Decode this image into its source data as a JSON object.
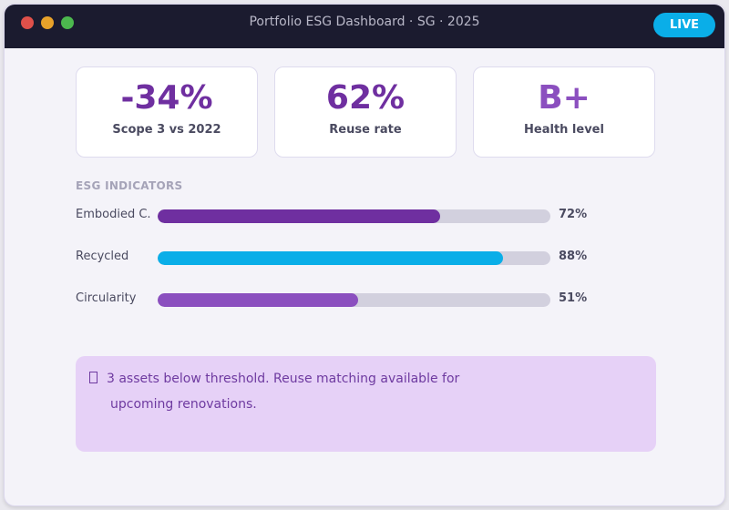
{
  "window": {
    "title": "Portfolio ESG Dashboard · SG · 2025",
    "status_badge": "LIVE",
    "controls": [
      "close",
      "minimize",
      "maximize"
    ]
  },
  "kpis": [
    {
      "value": "-34%",
      "label": "Scope 3 vs 2022",
      "color": "#6f2fa0"
    },
    {
      "value": "62%",
      "label": "Reuse rate",
      "color": "#6f2fa0"
    },
    {
      "value": "B+",
      "label": "Health level",
      "color": "#8b4fbf"
    }
  ],
  "indicators": {
    "title": "ESG INDICATORS",
    "items": [
      {
        "label": "Embodied C.",
        "percent": 72,
        "value_text": "72%",
        "color": "#6f2fa0"
      },
      {
        "label": "Recycled",
        "percent": 88,
        "value_text": "88%",
        "color": "#0aaee8"
      },
      {
        "label": "Circularity",
        "percent": 51,
        "value_text": "51%",
        "color": "#8b4fbf"
      }
    ]
  },
  "callout": {
    "icon": "info-icon",
    "line1": "3 assets below threshold. Reuse matching available for",
    "line2": "upcoming renovations."
  },
  "colors": {
    "titlebar": "#1b1b2f",
    "accent": "#6f2fa0",
    "live": "#0aaee8",
    "callout_bg": "#e6d1f7"
  }
}
